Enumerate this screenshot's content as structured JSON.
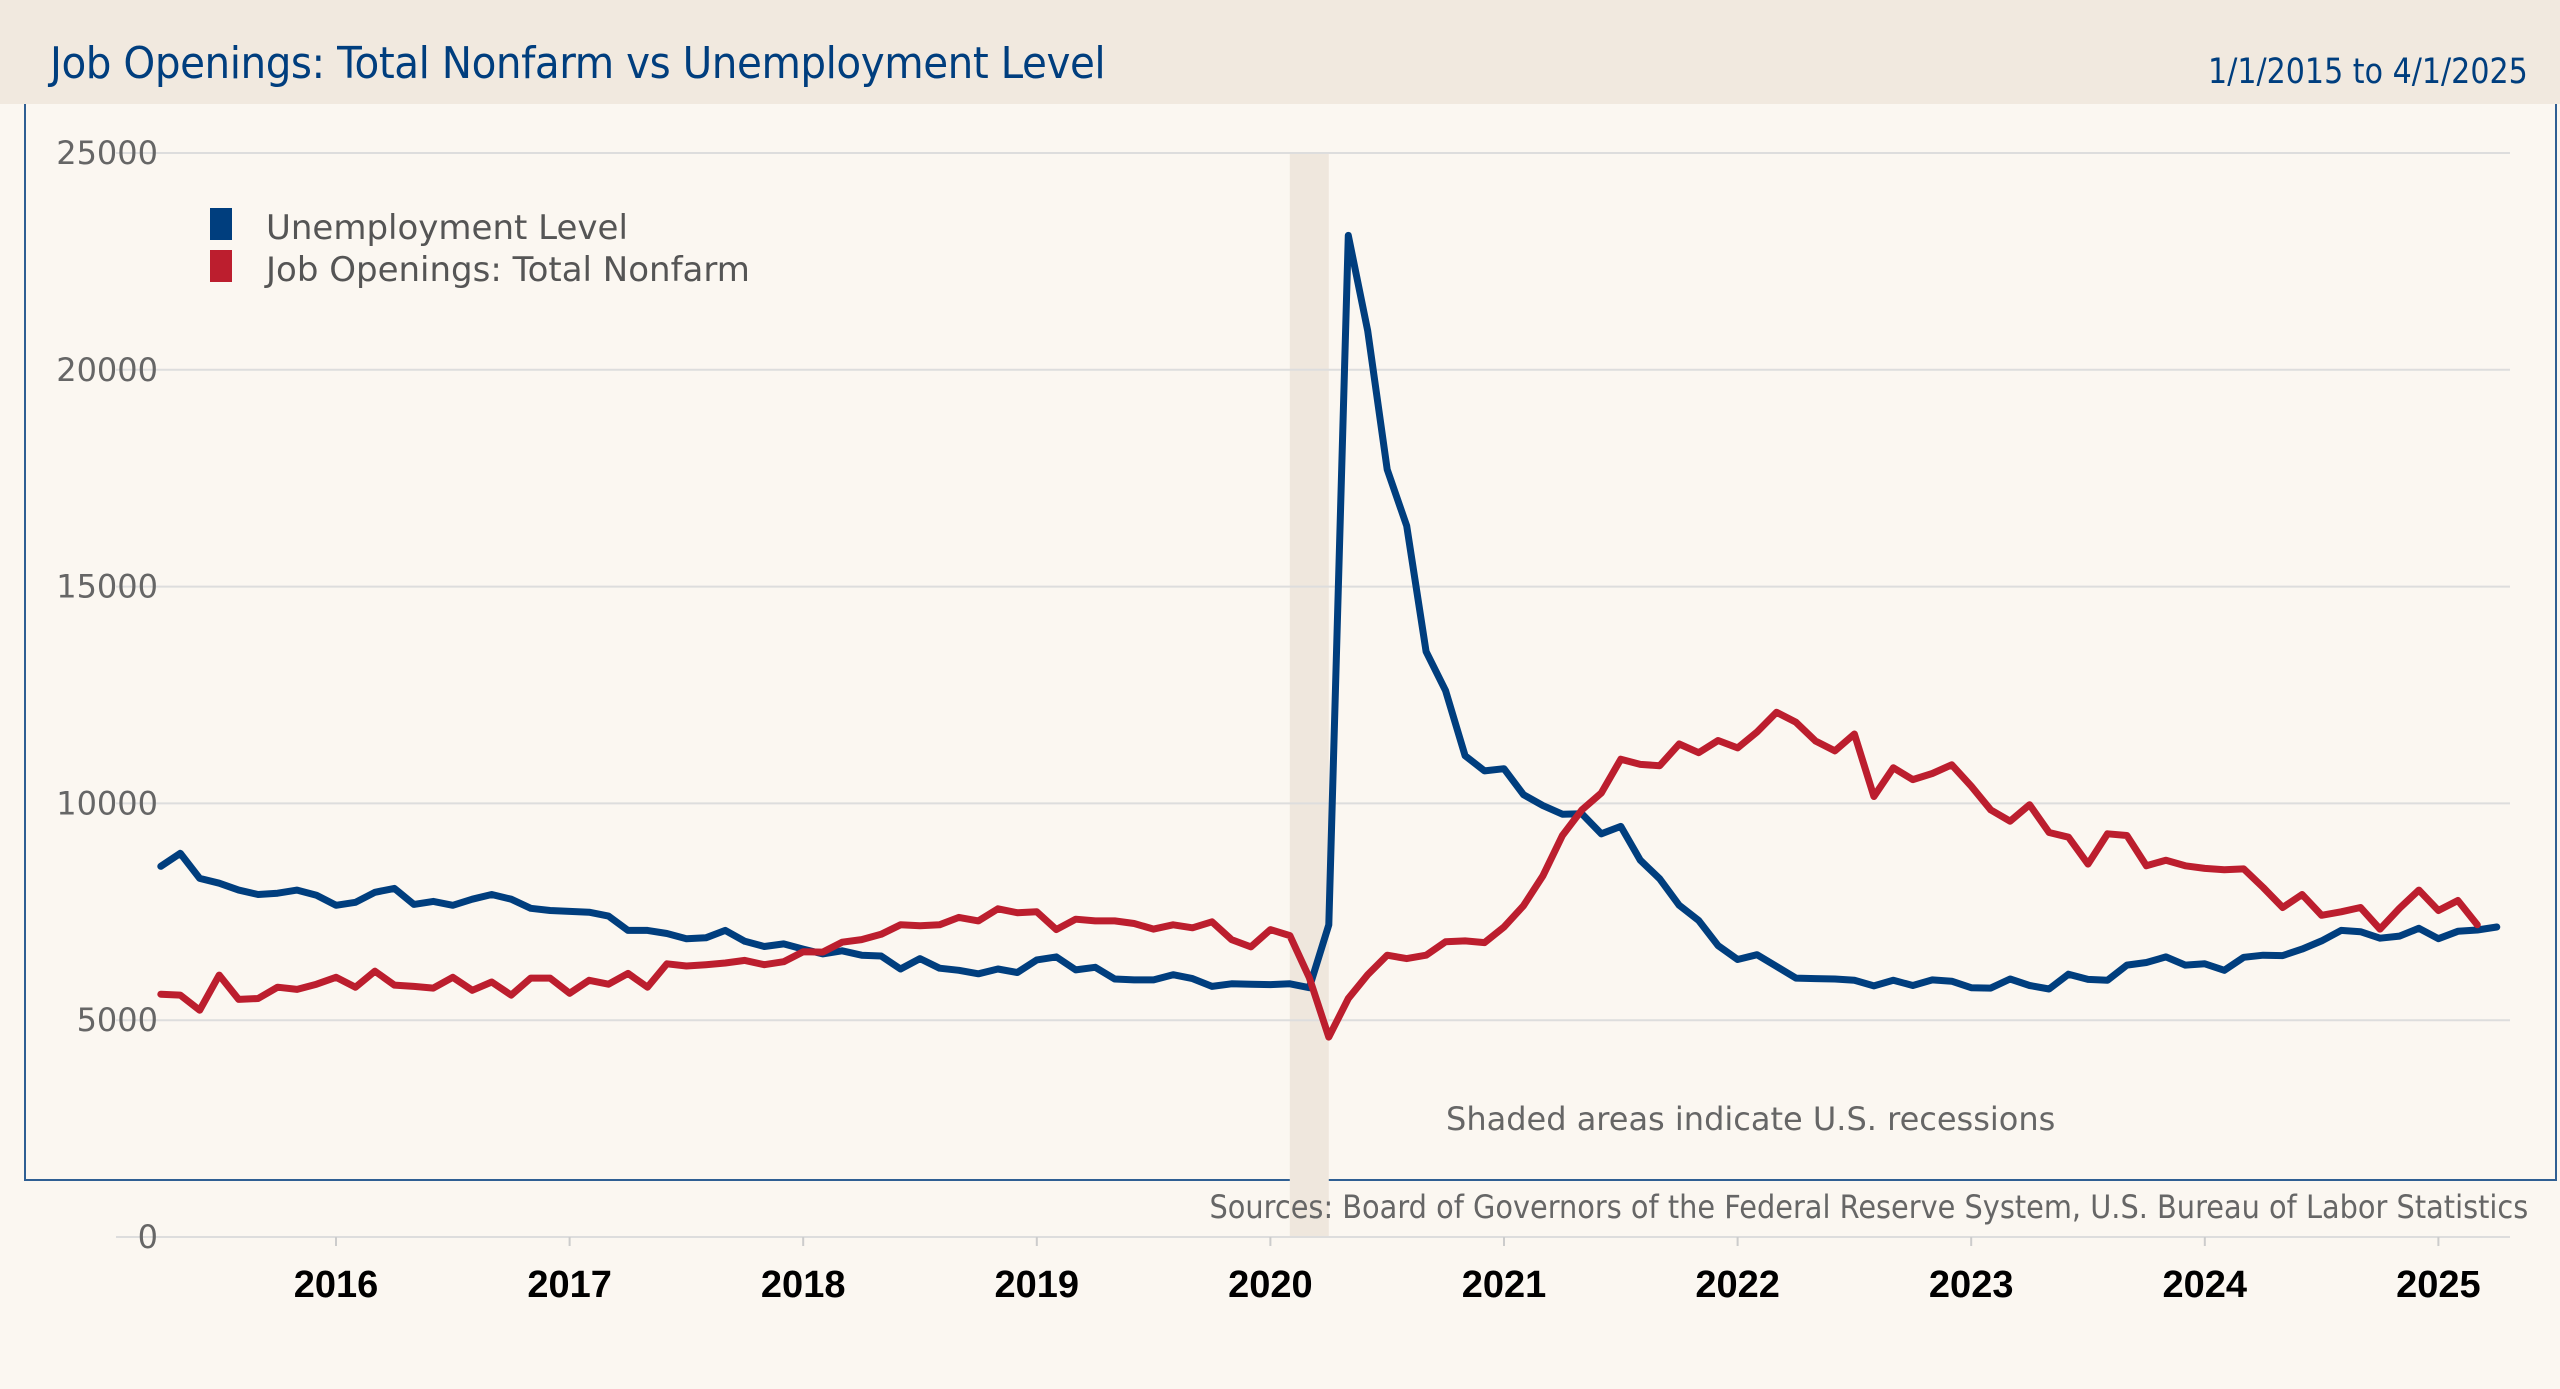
{
  "header": {
    "title": "Job Openings: Total Nonfarm vs Unemployment Level",
    "date_range": "1/1/2015 to 4/1/2025"
  },
  "footer": {
    "sources": "Sources: Board of Governors of the Federal Reserve System, U.S. Bureau of Labor Statistics"
  },
  "colors": {
    "unemployment": "#003e7e",
    "job_openings": "#bc1e2e",
    "recession_shade": "#efe7dd",
    "grid": "#dddddd"
  },
  "chart_data": {
    "type": "line",
    "title": "Job Openings: Total Nonfarm vs Unemployment Level",
    "subtitle": "1/1/2015 to 4/1/2025",
    "xlabel": "",
    "ylabel": "",
    "ylim": [
      0,
      25000
    ],
    "yticks": [
      0,
      5000,
      10000,
      15000,
      20000,
      25000
    ],
    "ytick_labels": [
      "0",
      "5000",
      "10000",
      "15000",
      "20000",
      "25000"
    ],
    "xticks": [
      2016,
      2017,
      2018,
      2019,
      2020,
      2021,
      2022,
      2023,
      2024,
      2025
    ],
    "xtick_labels": [
      "2016",
      "2017",
      "2018",
      "2019",
      "2020",
      "2021",
      "2022",
      "2023",
      "2024",
      "2025"
    ],
    "xlim": [
      2015.2,
      2025.45
    ],
    "grid": true,
    "legend_position": "top-left",
    "annotation": "Shaded areas indicate U.S. recessions",
    "recessions": [
      {
        "start": 2020.083,
        "end": 2020.25
      }
    ],
    "series": [
      {
        "name": "Unemployment Level",
        "color_key": "unemployment",
        "start": "2015-04",
        "frequency": "monthly",
        "values": [
          8550,
          8850,
          8270,
          8160,
          8000,
          7900,
          7930,
          8000,
          7880,
          7650,
          7720,
          7950,
          8040,
          7670,
          7740,
          7650,
          7790,
          7900,
          7790,
          7580,
          7530,
          7510,
          7490,
          7400,
          7070,
          7070,
          7000,
          6880,
          6900,
          7070,
          6820,
          6700,
          6760,
          6640,
          6530,
          6600,
          6500,
          6480,
          6180,
          6420,
          6200,
          6150,
          6070,
          6180,
          6100,
          6390,
          6460,
          6160,
          6220,
          5950,
          5930,
          5930,
          6050,
          5960,
          5780,
          5840,
          5830,
          5820,
          5840,
          5750,
          7200,
          23100,
          20900,
          17700,
          16400,
          13500,
          12600,
          11100,
          10750,
          10800,
          10200,
          9950,
          9750,
          9760,
          9300,
          9470,
          8690,
          8260,
          7650,
          7300,
          6720,
          6400,
          6510,
          6240,
          5970,
          5960,
          5950,
          5920,
          5790,
          5920,
          5800,
          5930,
          5900,
          5750,
          5740,
          5950,
          5800,
          5720,
          6060,
          5940,
          5920,
          6270,
          6330,
          6460,
          6270,
          6300,
          6150,
          6450,
          6500,
          6490,
          6640,
          6830,
          7070,
          7040,
          6890,
          6940,
          7120,
          6880,
          7050,
          7080,
          7150
        ]
      },
      {
        "name": "Job Openings: Total Nonfarm",
        "color_key": "job_openings",
        "start": "2015-04",
        "frequency": "monthly",
        "values": [
          5600,
          5580,
          5230,
          6040,
          5480,
          5500,
          5760,
          5710,
          5830,
          5990,
          5760,
          6130,
          5810,
          5780,
          5740,
          5990,
          5690,
          5880,
          5580,
          5970,
          5970,
          5620,
          5920,
          5830,
          6080,
          5760,
          6300,
          6250,
          6280,
          6320,
          6380,
          6280,
          6350,
          6580,
          6570,
          6800,
          6860,
          6980,
          7200,
          7180,
          7200,
          7370,
          7290,
          7570,
          7480,
          7500,
          7090,
          7330,
          7290,
          7290,
          7230,
          7100,
          7200,
          7130,
          7270,
          6860,
          6690,
          7090,
          6950,
          5980,
          4610,
          5500,
          6050,
          6500,
          6420,
          6500,
          6810,
          6830,
          6790,
          7150,
          7640,
          8330,
          9260,
          9850,
          10240,
          11020,
          10900,
          10870,
          11370,
          11170,
          11450,
          11280,
          11650,
          12100,
          11870,
          11440,
          11210,
          11600,
          10160,
          10820,
          10550,
          10690,
          10890,
          10400,
          9850,
          9590,
          9970,
          9330,
          9220,
          8600,
          9300,
          9260,
          8560,
          8690,
          8560,
          8500,
          8470,
          8490,
          8060,
          7600,
          7900,
          7420,
          7500,
          7600,
          7100,
          7580,
          8000,
          7530,
          7760,
          7200
        ]
      }
    ]
  }
}
